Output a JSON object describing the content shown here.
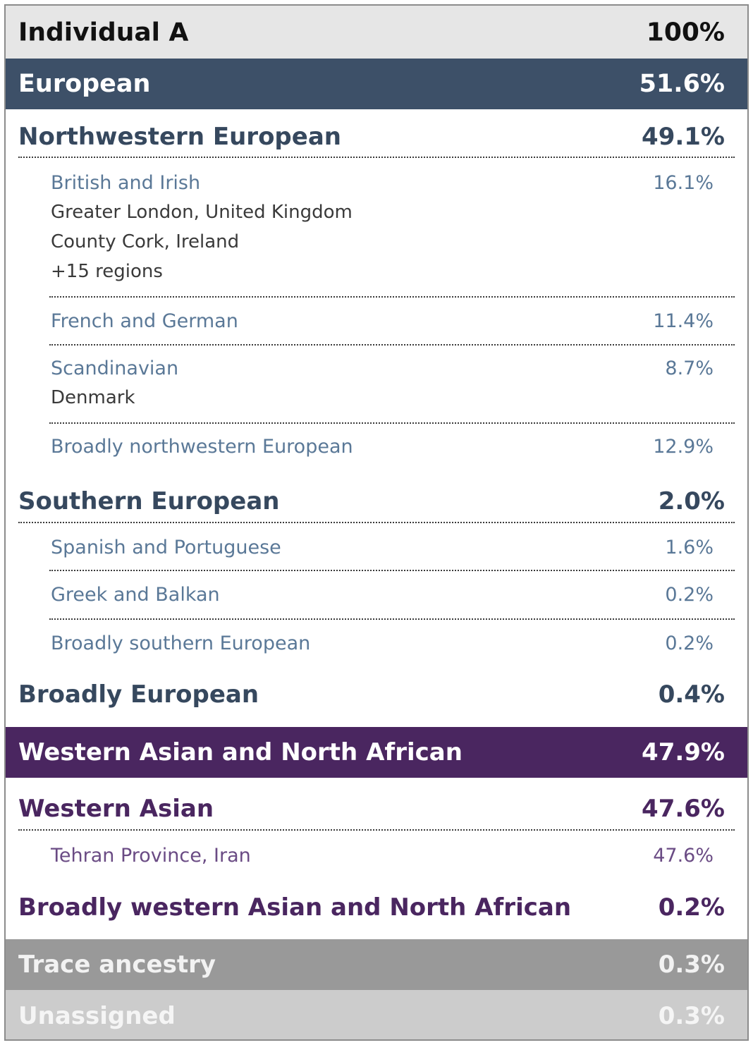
{
  "header": {
    "label": "Individual A",
    "pct": "100%"
  },
  "european": {
    "label": "European",
    "pct": "51.6%",
    "northwestern": {
      "label": "Northwestern European",
      "pct": "49.1%",
      "items": [
        {
          "label": "British and Irish",
          "pct": "16.1%",
          "regions": [
            "Greater London, United Kingdom",
            "County Cork, Ireland",
            "+15 regions"
          ]
        },
        {
          "label": "French and German",
          "pct": "11.4%",
          "regions": []
        },
        {
          "label": "Scandinavian",
          "pct": "8.7%",
          "regions": [
            "Denmark"
          ]
        },
        {
          "label": "Broadly northwestern European",
          "pct": "12.9%",
          "regions": []
        }
      ]
    },
    "southern": {
      "label": "Southern European",
      "pct": "2.0%",
      "items": [
        {
          "label": "Spanish and Portuguese",
          "pct": "1.6%"
        },
        {
          "label": "Greek and Balkan",
          "pct": "0.2%"
        },
        {
          "label": "Broadly southern European",
          "pct": "0.2%"
        }
      ]
    },
    "broadly": {
      "label": "Broadly European",
      "pct": "0.4%"
    }
  },
  "wana": {
    "label": "Western Asian and North African",
    "pct": "47.9%",
    "western_asian": {
      "label": "Western Asian",
      "pct": "47.6%",
      "items": [
        {
          "label": "Tehran Province, Iran",
          "pct": "47.6%"
        }
      ]
    },
    "broadly": {
      "label": "Broadly western Asian and North African",
      "pct": "0.2%"
    }
  },
  "trace": {
    "label": "Trace ancestry",
    "pct": "0.3%"
  },
  "unassigned": {
    "label": "Unassigned",
    "pct": "0.3%"
  },
  "colors": {
    "european_band": "#3d5068",
    "wana_band": "#4a2660",
    "trace_band": "#999999",
    "unassigned_band": "#cccccc",
    "header_band": "#e6e6e6"
  }
}
